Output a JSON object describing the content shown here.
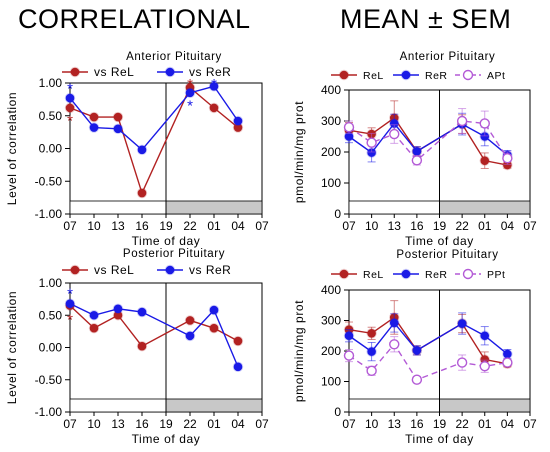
{
  "headings": {
    "left": "CORRELATIONAL",
    "right": "MEAN ± SEM"
  },
  "colors": {
    "rel": "#b22222",
    "rer": "#1a1ae6",
    "tissue": "#b35ad6",
    "dark_band": "#c8c8c8",
    "light_band": "#ffffff"
  },
  "chart_data": [
    {
      "id": "corr-anterior",
      "type": "line",
      "title": "Anterior Pituitary",
      "xlabel": "Time of day",
      "ylabel": "Level of correlation",
      "x_ticks": [
        "07",
        "10",
        "13",
        "16",
        "19",
        "22",
        "01",
        "04",
        "07"
      ],
      "ylim": [
        -1.0,
        1.0
      ],
      "y_ticks": [
        "1.00",
        "0.50",
        "0.00",
        "-0.50",
        "-1.00"
      ],
      "legend": [
        "vs ReL",
        "vs ReR"
      ],
      "series": [
        {
          "name": "vs ReL",
          "color_key": "rel",
          "x": [
            0,
            1,
            2,
            3,
            5,
            6,
            7
          ],
          "values": [
            0.62,
            0.48,
            0.48,
            -0.68,
            0.93,
            0.62,
            0.32
          ]
        },
        {
          "name": "vs ReR",
          "color_key": "rer",
          "x": [
            0,
            1,
            2,
            3,
            5,
            6,
            7
          ],
          "values": [
            0.77,
            0.32,
            0.3,
            -0.02,
            0.85,
            0.95,
            0.42
          ]
        }
      ],
      "significance_marks": [
        {
          "x": 0,
          "y": 0.96,
          "color_key": "rer"
        },
        {
          "x": 0,
          "y": 0.47,
          "color_key": "rel"
        },
        {
          "x": 5,
          "y": 1.03,
          "color_key": "rel"
        },
        {
          "x": 6,
          "y": 1.03,
          "color_key": "rer"
        },
        {
          "x": 5,
          "y": 0.7,
          "color_key": "rer"
        }
      ],
      "lights_off_from": 4
    },
    {
      "id": "corr-posterior",
      "type": "line",
      "title": "Posterior Pituitary",
      "xlabel": "Time of day",
      "ylabel": "Level of correlation",
      "x_ticks": [
        "07",
        "10",
        "13",
        "16",
        "19",
        "22",
        "01",
        "04",
        "07"
      ],
      "ylim": [
        -1.0,
        1.0
      ],
      "y_ticks": [
        "1.00",
        "0.50",
        "0.00",
        "-0.50",
        "-1.00"
      ],
      "legend": [
        "vs ReL",
        "vs ReR"
      ],
      "series": [
        {
          "name": "vs ReL",
          "color_key": "rel",
          "x": [
            0,
            1,
            2,
            3,
            5,
            6,
            7
          ],
          "values": [
            0.65,
            0.3,
            0.5,
            0.02,
            0.42,
            0.3,
            0.1
          ]
        },
        {
          "name": "vs ReR",
          "color_key": "rer",
          "x": [
            0,
            1,
            2,
            3,
            5,
            6,
            7
          ],
          "values": [
            0.68,
            0.5,
            0.6,
            0.55,
            0.18,
            0.58,
            -0.3
          ]
        }
      ],
      "significance_marks": [
        {
          "x": 0,
          "y": 0.88,
          "color_key": "rer"
        },
        {
          "x": 0,
          "y": 0.48,
          "color_key": "rel"
        }
      ],
      "lights_off_from": 4
    },
    {
      "id": "mean-anterior",
      "type": "line",
      "title": "Anterior Pituitary",
      "xlabel": "Time of day",
      "ylabel": "pmol/min/mg prot",
      "x_ticks": [
        "07",
        "10",
        "13",
        "16",
        "19",
        "22",
        "01",
        "04",
        "07"
      ],
      "ylim": [
        0,
        400
      ],
      "y_ticks": [
        "400",
        "300",
        "200",
        "100",
        "0"
      ],
      "legend": [
        "ReL",
        "ReR",
        "APt"
      ],
      "series": [
        {
          "name": "ReL",
          "color_key": "rel",
          "x": [
            0,
            1,
            2,
            3,
            5,
            6,
            7
          ],
          "values": [
            270,
            258,
            310,
            202,
            290,
            172,
            158
          ],
          "err": [
            25,
            20,
            55,
            15,
            30,
            25,
            10
          ]
        },
        {
          "name": "ReR",
          "color_key": "rer",
          "x": [
            0,
            1,
            2,
            3,
            5,
            6,
            7
          ],
          "values": [
            250,
            198,
            292,
            202,
            290,
            250,
            190
          ],
          "err": [
            20,
            30,
            30,
            15,
            35,
            30,
            15
          ]
        },
        {
          "name": "APt",
          "color_key": "tissue",
          "dashed": true,
          "open": true,
          "x": [
            0,
            1,
            2,
            3,
            5,
            6,
            7
          ],
          "values": [
            280,
            230,
            258,
            173,
            300,
            292,
            180
          ],
          "err": [
            20,
            30,
            30,
            15,
            40,
            40,
            20
          ]
        }
      ],
      "lights_off_from": 4
    },
    {
      "id": "mean-posterior",
      "type": "line",
      "title": "Posterior Pituitary",
      "xlabel": "Time of day",
      "ylabel": "pmol/min/mg prot",
      "x_ticks": [
        "07",
        "10",
        "13",
        "16",
        "19",
        "22",
        "01",
        "04",
        "07"
      ],
      "ylim": [
        0,
        400
      ],
      "y_ticks": [
        "400",
        "300",
        "200",
        "100",
        "0"
      ],
      "legend": [
        "ReL",
        "ReR",
        "PPt"
      ],
      "series": [
        {
          "name": "ReL",
          "color_key": "rel",
          "x": [
            0,
            1,
            2,
            3,
            5,
            6,
            7
          ],
          "values": [
            270,
            258,
            310,
            202,
            290,
            172,
            158
          ],
          "err": [
            25,
            20,
            55,
            15,
            30,
            25,
            10
          ]
        },
        {
          "name": "ReR",
          "color_key": "rer",
          "x": [
            0,
            1,
            2,
            3,
            5,
            6,
            7
          ],
          "values": [
            250,
            198,
            292,
            202,
            290,
            250,
            190
          ],
          "err": [
            20,
            30,
            30,
            15,
            35,
            30,
            15
          ]
        },
        {
          "name": "PPt",
          "color_key": "tissue",
          "dashed": true,
          "open": true,
          "x": [
            0,
            1,
            2,
            3,
            5,
            6,
            7
          ],
          "values": [
            185,
            135,
            222,
            106,
            162,
            150,
            162
          ],
          "err": [
            20,
            15,
            25,
            10,
            25,
            20,
            10
          ]
        }
      ],
      "lights_off_from": 4
    }
  ]
}
